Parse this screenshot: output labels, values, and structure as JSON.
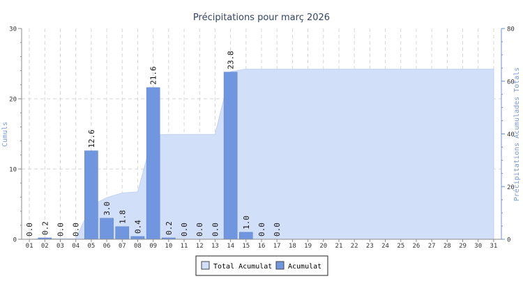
{
  "chart_data": {
    "type": "bar",
    "title": "Précipitations pour març 2026",
    "categories": [
      "01",
      "02",
      "03",
      "04",
      "05",
      "06",
      "07",
      "08",
      "09",
      "10",
      "11",
      "12",
      "13",
      "14",
      "15",
      "16",
      "17",
      "18",
      "19",
      "20",
      "21",
      "22",
      "23",
      "24",
      "25",
      "26",
      "27",
      "28",
      "29",
      "30",
      "31"
    ],
    "series": [
      {
        "name": "Acumulat",
        "type": "bar",
        "axis": "left",
        "values": [
          0.0,
          0.2,
          0.0,
          0.0,
          12.6,
          3.0,
          1.8,
          0.4,
          21.6,
          0.2,
          0.0,
          0.0,
          0.0,
          23.8,
          1.0,
          0.0,
          0.0,
          null,
          null,
          null,
          null,
          null,
          null,
          null,
          null,
          null,
          null,
          null,
          null,
          null,
          null
        ],
        "value_labels": [
          "0.0",
          "0.2",
          "0.0",
          "0.0",
          "12.6",
          "3.0",
          "1.8",
          "0.4",
          "21.6",
          "0.2",
          "0.0",
          "0.0",
          "0.0",
          "23.8",
          "1.0",
          "0.0",
          "0.0"
        ]
      },
      {
        "name": "Total Acumulat",
        "type": "area",
        "axis": "right",
        "values": [
          0.0,
          0.2,
          0.2,
          0.2,
          12.8,
          15.8,
          17.6,
          18.0,
          39.6,
          39.8,
          39.8,
          39.8,
          39.8,
          63.6,
          64.6,
          64.6,
          64.6,
          64.6,
          64.6,
          64.6,
          64.6,
          64.6,
          64.6,
          64.6,
          64.6,
          64.6,
          64.6,
          64.6,
          64.6,
          64.6,
          64.6
        ]
      }
    ],
    "ylabel": "Cumuls",
    "ylabel_right": "Précipitations Acumulades Totals",
    "ylim": [
      0,
      30
    ],
    "ylim_right": [
      0,
      80
    ],
    "yticks": [
      "0",
      "10",
      "20",
      "30"
    ],
    "yticks_right": [
      "0",
      "20",
      "40",
      "60",
      "80"
    ],
    "grid": true,
    "legend": "bottom-center",
    "colors": {
      "bar_fill": "#7096e0",
      "bar_stroke": "#5a7fc8",
      "area_fill": "#d2dff8",
      "area_stroke": "#c0d2f4",
      "axis": "#8a8a8a",
      "right_axis": "#6b8fd6",
      "grid": "#d6d6d6",
      "title": "#334466",
      "axis_label": "#7a9ad0"
    }
  }
}
